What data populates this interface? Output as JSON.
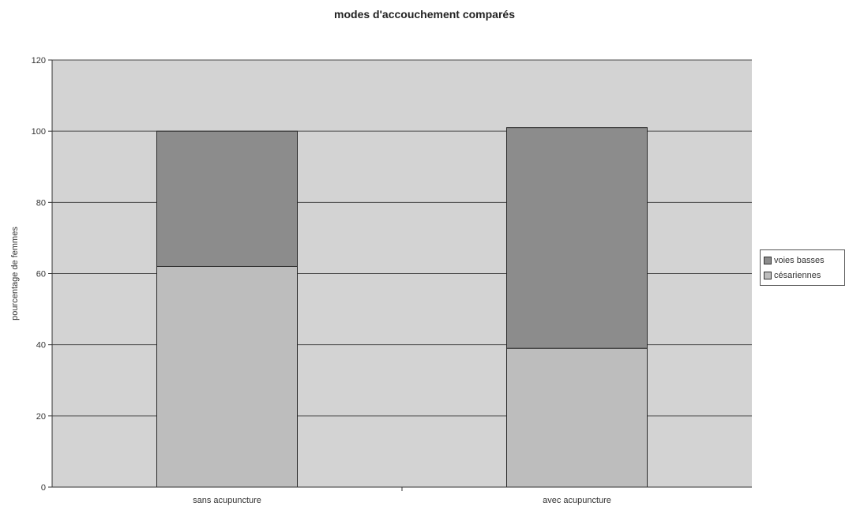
{
  "chart_data": {
    "type": "bar",
    "stacked": true,
    "title": "modes d'accouchement comparés",
    "xlabel": "",
    "ylabel": "pourcentage de femmes",
    "categories": [
      "sans acupuncture",
      "avec acupuncture"
    ],
    "series": [
      {
        "name": "césariennes",
        "values": [
          62,
          39
        ],
        "color": "#bdbdbd"
      },
      {
        "name": "voies basses",
        "values": [
          38,
          62
        ],
        "color": "#8c8c8c"
      }
    ],
    "legend_order": [
      "voies basses",
      "césariennes"
    ],
    "ylim": [
      0,
      120
    ],
    "yticks": [
      "0",
      "20",
      "40",
      "60",
      "80",
      "100",
      "120"
    ],
    "grid": true,
    "legend_position": "right",
    "plot_background": "#d3d3d3"
  }
}
